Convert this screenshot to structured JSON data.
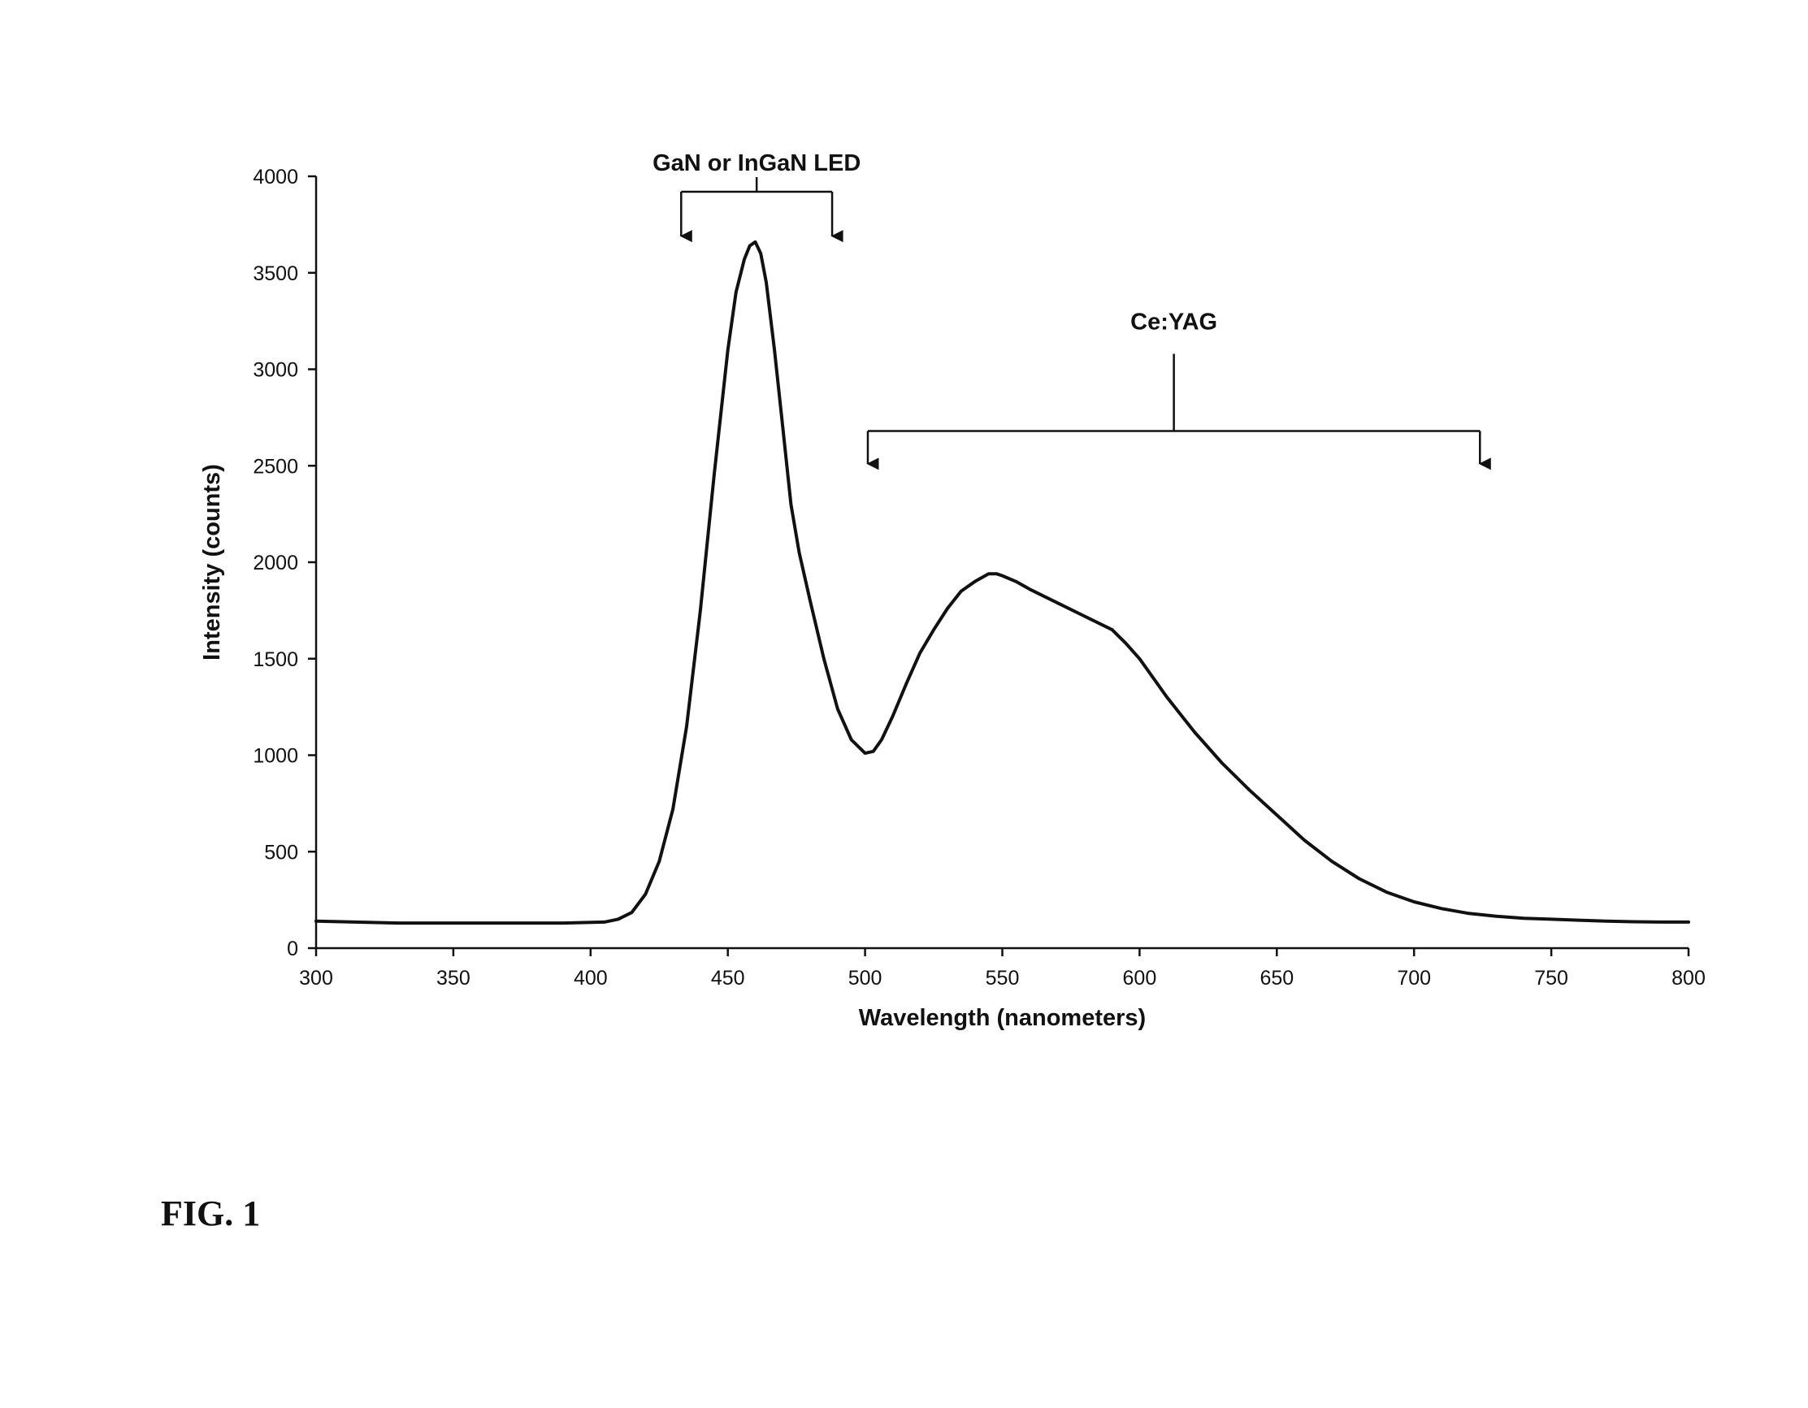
{
  "figure_label": "FIG. 1",
  "chart_data": {
    "type": "line",
    "xlabel": "Wavelength (nanometers)",
    "ylabel": "Intensity (counts)",
    "xlim": [
      300,
      800
    ],
    "ylim": [
      0,
      4000
    ],
    "xticks": [
      300,
      350,
      400,
      450,
      500,
      550,
      600,
      650,
      700,
      750,
      800
    ],
    "yticks": [
      0,
      500,
      1000,
      1500,
      2000,
      2500,
      3000,
      3500,
      4000
    ],
    "grid": false,
    "series": [
      {
        "x": [
          300,
          330,
          360,
          390,
          405,
          410,
          415,
          420,
          425,
          430,
          435,
          440,
          445,
          450,
          453,
          456,
          458,
          460,
          462,
          464,
          467,
          470,
          473,
          476,
          480,
          485,
          490,
          495,
          500,
          503,
          506,
          510,
          515,
          520,
          525,
          530,
          535,
          540,
          545,
          548,
          550,
          555,
          560,
          570,
          580,
          590,
          595,
          600,
          605,
          610,
          620,
          630,
          640,
          650,
          660,
          670,
          680,
          690,
          700,
          710,
          720,
          730,
          740,
          750,
          760,
          770,
          780,
          790,
          800
        ],
        "y": [
          140,
          130,
          130,
          130,
          135,
          150,
          185,
          280,
          450,
          720,
          1150,
          1750,
          2450,
          3100,
          3400,
          3570,
          3640,
          3660,
          3600,
          3450,
          3100,
          2700,
          2300,
          2050,
          1800,
          1500,
          1240,
          1080,
          1010,
          1020,
          1080,
          1200,
          1370,
          1530,
          1650,
          1760,
          1850,
          1900,
          1940,
          1940,
          1930,
          1900,
          1860,
          1790,
          1720,
          1650,
          1580,
          1500,
          1400,
          1300,
          1120,
          960,
          820,
          690,
          560,
          450,
          360,
          290,
          240,
          205,
          180,
          165,
          155,
          150,
          145,
          140,
          137,
          135,
          135
        ]
      }
    ],
    "annotations": [
      {
        "text": "GaN or InGaN  LED",
        "x_start": 433,
        "x_end": 488,
        "y_bracket": 3920,
        "y_arrow": 3690
      },
      {
        "text": "Ce:YAG",
        "x_start": 501,
        "x_end": 724,
        "y_bracket": 2680,
        "y_arrow": 2510
      }
    ]
  }
}
